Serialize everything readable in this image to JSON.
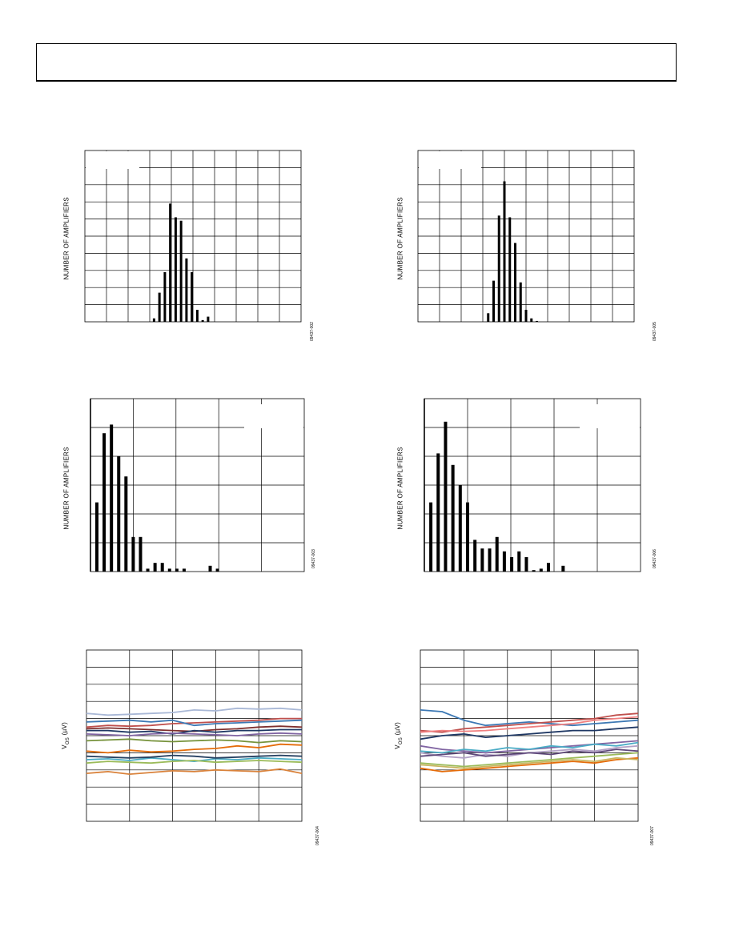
{
  "header": {
    "text": ""
  },
  "figures": [
    {
      "id": "fig-hist-1",
      "ylabel": "NUMBER OF AMPLIFIERS",
      "fignum": "09437-002",
      "chart_data": {
        "type": "bar",
        "ylabel": "NUMBER OF AMPLIFIERS",
        "grid": true,
        "xlim": [
          0,
          10
        ],
        "ylim": [
          0,
          10
        ],
        "bar_centers": [
          3.2,
          3.45,
          3.7,
          3.95,
          4.2,
          4.45,
          4.7,
          4.95,
          5.2,
          5.45,
          5.7,
          5.95
        ],
        "values": [
          0.2,
          1.7,
          2.9,
          6.9,
          6.1,
          5.9,
          3.7,
          2.9,
          0.7,
          0.1,
          0.3,
          0
        ]
      }
    },
    {
      "id": "fig-hist-2",
      "ylabel": "NUMBER OF AMPLIFIERS",
      "fignum": "09437-005",
      "chart_data": {
        "type": "bar",
        "ylabel": "NUMBER OF AMPLIFIERS",
        "grid": true,
        "xlim": [
          0,
          10
        ],
        "ylim": [
          0,
          10
        ],
        "bar_centers": [
          3.25,
          3.5,
          3.75,
          4.0,
          4.25,
          4.5,
          4.75,
          5.0,
          5.25,
          5.5,
          5.75
        ],
        "values": [
          0.5,
          2.4,
          6.2,
          8.2,
          6.1,
          4.6,
          2.3,
          0.7,
          0.2,
          0.05,
          0
        ]
      }
    },
    {
      "id": "fig-hist-3",
      "ylabel": "NUMBER OF AMPLIFIERS",
      "fignum": "09437-003",
      "chart_data": {
        "type": "bar",
        "ylabel": "NUMBER OF AMPLIFIERS",
        "grid": true,
        "xlim": [
          0,
          5
        ],
        "ylim": [
          0,
          6
        ],
        "bar_centers": [
          0.15,
          0.32,
          0.49,
          0.66,
          0.83,
          1.0,
          1.17,
          1.34,
          1.51,
          1.68,
          1.85,
          2.02,
          2.19,
          2.8,
          2.97
        ],
        "values": [
          2.4,
          4.8,
          5.1,
          4.0,
          3.3,
          1.2,
          1.2,
          0.1,
          0.3,
          0.3,
          0.1,
          0.1,
          0.1,
          0.2,
          0.1
        ]
      }
    },
    {
      "id": "fig-hist-4",
      "ylabel": "NUMBER OF AMPLIFIERS",
      "fignum": "09437-006",
      "chart_data": {
        "type": "bar",
        "ylabel": "NUMBER OF AMPLIFIERS",
        "grid": true,
        "xlim": [
          0,
          5
        ],
        "ylim": [
          0,
          6
        ],
        "bar_centers": [
          0.15,
          0.32,
          0.49,
          0.66,
          0.83,
          1.0,
          1.17,
          1.34,
          1.51,
          1.68,
          1.85,
          2.02,
          2.19,
          2.36,
          2.53,
          2.7,
          2.87,
          3.21
        ],
        "values": [
          2.4,
          4.1,
          5.2,
          3.7,
          3.0,
          2.4,
          1.1,
          0.8,
          0.8,
          1.2,
          0.7,
          0.5,
          0.7,
          0.5,
          0.05,
          0.1,
          0.3,
          0.2
        ]
      }
    },
    {
      "id": "fig-line-1",
      "ylabel": "V",
      "ylabel_sub": "OS",
      "ylabel_unit": " (µV)",
      "fignum": "09437-004",
      "chart_data": {
        "type": "line",
        "ylabel": "VOS (µV)",
        "grid": true,
        "xlim": [
          0,
          5
        ],
        "ylim": [
          -5,
          5
        ],
        "series": [
          {
            "color": "#a9b8d6",
            "values": [
              1.3,
              1.2,
              1.25,
              1.3,
              1.35,
              1.5,
              1.45,
              1.6,
              1.55,
              1.6,
              1.5
            ]
          },
          {
            "color": "#c0504d",
            "values": [
              0.5,
              0.6,
              0.55,
              0.6,
              0.7,
              0.75,
              0.8,
              0.85,
              0.9,
              1.0,
              1.0
            ]
          },
          {
            "color": "#7f2f2e",
            "values": [
              0.4,
              0.45,
              0.4,
              0.35,
              0.3,
              0.25,
              0.35,
              0.4,
              0.5,
              0.55,
              0.5
            ]
          },
          {
            "color": "#1f3864",
            "values": [
              0.3,
              0.3,
              0.2,
              0.25,
              0.1,
              0.3,
              0.2,
              0.3,
              0.3,
              0.35,
              0.35
            ]
          },
          {
            "color": "#3c78b4",
            "values": [
              0.8,
              0.85,
              0.9,
              0.8,
              0.9,
              0.6,
              0.7,
              0.75,
              0.8,
              0.85,
              0.9
            ]
          },
          {
            "color": "#8064a2",
            "values": [
              0.1,
              0.05,
              0.0,
              0.1,
              0.15,
              0.1,
              0.05,
              0.0,
              0.1,
              0.15,
              0.1
            ]
          },
          {
            "color": "#77933c",
            "values": [
              -0.3,
              -0.25,
              -0.2,
              -0.3,
              -0.35,
              -0.3,
              -0.25,
              -0.3,
              -0.4,
              -0.3,
              -0.35
            ]
          },
          {
            "color": "#e46c0a",
            "values": [
              -0.9,
              -1.0,
              -0.85,
              -0.95,
              -0.9,
              -0.8,
              -0.75,
              -0.6,
              -0.7,
              -0.5,
              -0.55
            ]
          },
          {
            "color": "#4bacc6",
            "values": [
              -1.4,
              -1.35,
              -1.45,
              -1.3,
              -1.4,
              -1.5,
              -1.35,
              -1.4,
              -1.3,
              -1.35,
              -1.4
            ]
          },
          {
            "color": "#254061",
            "values": [
              -1.2,
              -1.25,
              -1.3,
              -1.25,
              -1.15,
              -1.2,
              -1.3,
              -1.25,
              -1.2,
              -1.15,
              -1.2
            ]
          },
          {
            "color": "#9bbb59",
            "values": [
              -1.6,
              -1.5,
              -1.55,
              -1.6,
              -1.5,
              -1.45,
              -1.55,
              -1.5,
              -1.45,
              -1.5,
              -1.55
            ]
          },
          {
            "color": "#d9823b",
            "values": [
              -2.2,
              -2.1,
              -2.25,
              -2.15,
              -2.05,
              -2.1,
              -2.0,
              -2.05,
              -2.1,
              -1.95,
              -2.2
            ]
          }
        ]
      }
    },
    {
      "id": "fig-line-2",
      "ylabel": "V",
      "ylabel_sub": "OS",
      "ylabel_unit": " (µV)",
      "fignum": "09437-007",
      "chart_data": {
        "type": "line",
        "ylabel": "VOS (µV)",
        "grid": true,
        "xlim": [
          0,
          5
        ],
        "ylim": [
          -5,
          5
        ],
        "series": [
          {
            "color": "#3c78b4",
            "values": [
              1.5,
              1.4,
              0.9,
              0.6,
              0.7,
              0.8,
              0.7,
              0.6,
              0.7,
              0.8,
              0.9
            ]
          },
          {
            "color": "#c0504d",
            "values": [
              0.3,
              0.2,
              0.4,
              0.5,
              0.6,
              0.7,
              0.8,
              0.9,
              1.0,
              1.2,
              1.3
            ]
          },
          {
            "color": "#f08080",
            "values": [
              0.2,
              0.3,
              0.25,
              0.3,
              0.4,
              0.5,
              0.6,
              0.7,
              0.9,
              1.0,
              1.1
            ]
          },
          {
            "color": "#1f3864",
            "values": [
              -0.2,
              0.0,
              0.1,
              -0.1,
              0.0,
              0.1,
              0.2,
              0.3,
              0.3,
              0.4,
              0.5
            ]
          },
          {
            "color": "#8064a2",
            "values": [
              -0.6,
              -0.8,
              -0.9,
              -1.0,
              -0.9,
              -0.8,
              -0.7,
              -0.6,
              -0.5,
              -0.4,
              -0.3
            ]
          },
          {
            "color": "#b3a2c7",
            "values": [
              -1.0,
              -1.2,
              -1.3,
              -1.1,
              -1.2,
              -1.0,
              -0.9,
              -0.8,
              -0.9,
              -0.7,
              -0.6
            ]
          },
          {
            "color": "#604a7b",
            "values": [
              -1.2,
              -1.1,
              -1.0,
              -1.2,
              -1.1,
              -1.0,
              -1.1,
              -0.9,
              -1.0,
              -0.8,
              -0.9
            ]
          },
          {
            "color": "#4bacc6",
            "values": [
              -0.9,
              -1.0,
              -0.8,
              -0.9,
              -0.7,
              -0.8,
              -0.6,
              -0.7,
              -0.5,
              -0.6,
              -0.4
            ]
          },
          {
            "color": "#9bbb59",
            "values": [
              -1.6,
              -1.7,
              -1.8,
              -1.7,
              -1.6,
              -1.5,
              -1.4,
              -1.3,
              -1.2,
              -1.1,
              -1.0
            ]
          },
          {
            "color": "#e46c0a",
            "values": [
              -1.9,
              -2.1,
              -2.0,
              -1.9,
              -1.8,
              -1.7,
              -1.6,
              -1.5,
              -1.6,
              -1.4,
              -1.3
            ]
          },
          {
            "color": "#c8b560",
            "values": [
              -1.7,
              -1.8,
              -1.9,
              -1.8,
              -1.7,
              -1.6,
              -1.5,
              -1.4,
              -1.5,
              -1.3,
              -1.4
            ]
          }
        ]
      }
    }
  ]
}
